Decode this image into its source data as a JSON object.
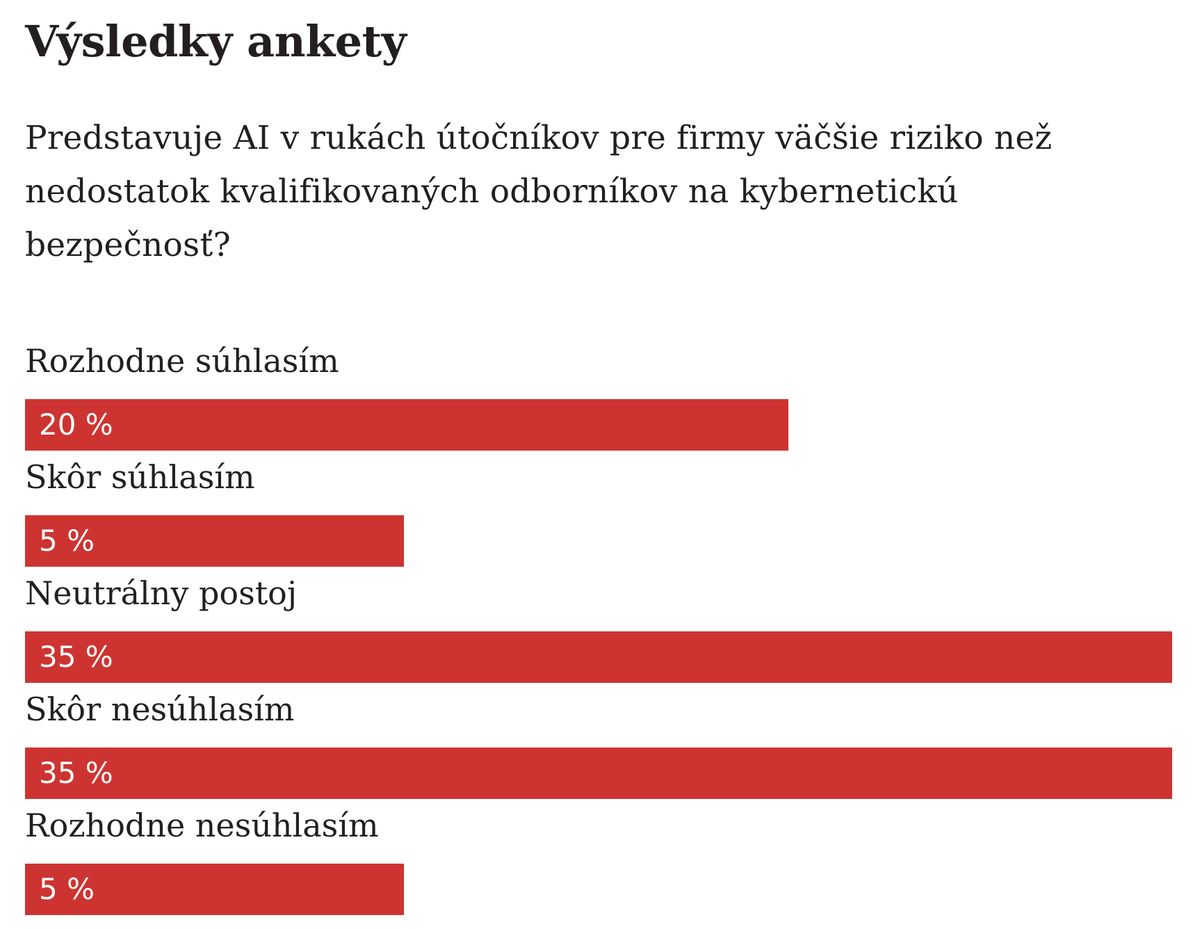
{
  "title": "Výsledky ankety",
  "question": "Predstavuje AI v rukách útočníkov pre firmy väčšie riziko než nedostatok kvalifikovaných odborníkov na kybernetickú bezpečnosť?",
  "colors": {
    "bar": "#cd3431",
    "text": "#231f20",
    "bar_text": "#ffffff",
    "background": "#ffffff"
  },
  "options": [
    {
      "label": "Rozhodne súhlasím",
      "value_label": "20 %"
    },
    {
      "label": "Skôr súhlasím",
      "value_label": "5 %"
    },
    {
      "label": "Neutrálny postoj",
      "value_label": "35 %"
    },
    {
      "label": "Skôr nesúhlasím",
      "value_label": "35 %"
    },
    {
      "label": "Rozhodne nesúhlasím",
      "value_label": "5 %"
    }
  ],
  "chart_data": {
    "type": "bar",
    "orientation": "horizontal",
    "title": "Výsledky ankety",
    "subtitle": "Predstavuje AI v rukách útočníkov pre firmy väčšie riziko než nedostatok kvalifikovaných odborníkov na kybernetickú bezpečnosť?",
    "categories": [
      "Rozhodne súhlasím",
      "Skôr súhlasím",
      "Neutrálny postoj",
      "Skôr nesúhlasím",
      "Rozhodne nesúhlasím"
    ],
    "values": [
      20,
      5,
      35,
      35,
      5
    ],
    "unit": "%",
    "xlim": [
      0,
      35
    ],
    "grid": false,
    "legend": "none"
  }
}
